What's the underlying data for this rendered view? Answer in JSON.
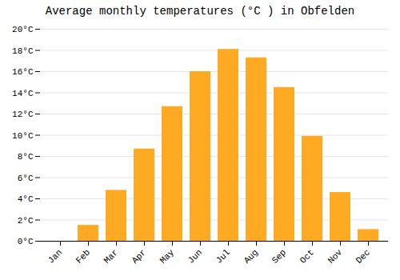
{
  "chart_data": {
    "type": "bar",
    "title": "Average monthly temperatures (°C ) in Obfelden",
    "categories": [
      "Jan",
      "Feb",
      "Mar",
      "Apr",
      "May",
      "Jun",
      "Jul",
      "Aug",
      "Sep",
      "Oct",
      "Nov",
      "Dec"
    ],
    "values": [
      0.0,
      1.5,
      4.8,
      8.7,
      12.7,
      16.0,
      18.1,
      17.3,
      14.5,
      9.9,
      4.6,
      1.1
    ],
    "color": "#FFAA22",
    "ylim": [
      0,
      20
    ],
    "yticks": [
      {
        "value": 0,
        "label": "0°C"
      },
      {
        "value": 2,
        "label": "2°C"
      },
      {
        "value": 4,
        "label": "4°C"
      },
      {
        "value": 6,
        "label": "6°C"
      },
      {
        "value": 8,
        "label": "8°C"
      },
      {
        "value": 10,
        "label": "10°C"
      },
      {
        "value": 12,
        "label": "12°C"
      },
      {
        "value": 14,
        "label": "14°C"
      },
      {
        "value": 16,
        "label": "16°C"
      },
      {
        "value": 18,
        "label": "18°C"
      },
      {
        "value": 20,
        "label": "20°C"
      }
    ],
    "grid": true
  }
}
